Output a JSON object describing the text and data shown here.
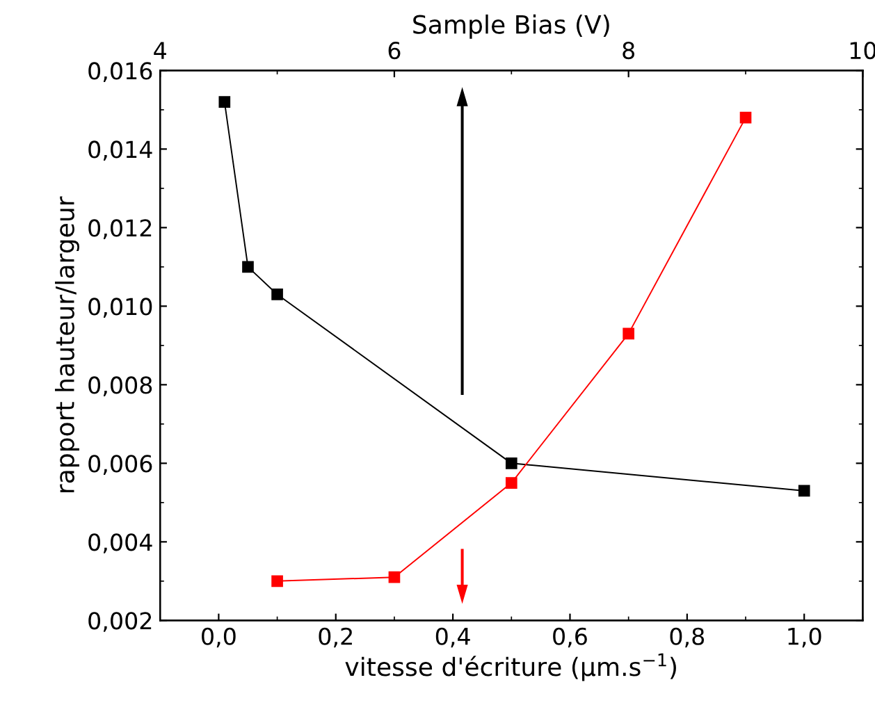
{
  "chart_data": {
    "type": "line",
    "xlabel": "vitesse d'écriture (µm.s$^{−1}$)",
    "ylabel": "rapport hauteur/largeur",
    "x2label": "Sample Bias (V)",
    "series": [
      {
        "color": "#000000",
        "x": [
          0.01,
          0.05,
          0.1,
          0.5,
          1.0
        ],
        "values": [
          0.0152,
          0.011,
          0.0103,
          0.006,
          0.0053
        ]
      },
      {
        "color": "#ff0000",
        "axis": "x2",
        "x": [
          5,
          6,
          7,
          8,
          9
        ],
        "values": [
          0.003,
          0.0031,
          0.0055,
          0.0093,
          0.0148
        ]
      }
    ],
    "xlim": [
      -0.1,
      1.1
    ],
    "xticks": [
      {
        "value": 0.0,
        "label": "0,0"
      },
      {
        "value": 0.2,
        "label": "0,2"
      },
      {
        "value": 0.4,
        "label": "0,4"
      },
      {
        "value": 0.6,
        "label": "0,6"
      },
      {
        "value": 0.8,
        "label": "0,8"
      },
      {
        "value": 1.0,
        "label": "1,0"
      }
    ],
    "x2lim": [
      4,
      10
    ],
    "x2ticks": [
      4,
      6,
      8,
      10
    ],
    "ylim": [
      0.002,
      0.016
    ],
    "yticks": [
      {
        "value": 0.002,
        "label": "0,002"
      },
      {
        "value": 0.004,
        "label": "0,004"
      },
      {
        "value": 0.006,
        "label": "0,006"
      },
      {
        "value": 0.008,
        "label": "0,008"
      },
      {
        "value": 0.01,
        "label": "0,010"
      },
      {
        "value": 0.012,
        "label": "0,012"
      },
      {
        "value": 0.014,
        "label": "0,014"
      },
      {
        "value": 0.016,
        "label": "0,016"
      }
    ],
    "marker": "square",
    "grid": false,
    "legend": false
  }
}
